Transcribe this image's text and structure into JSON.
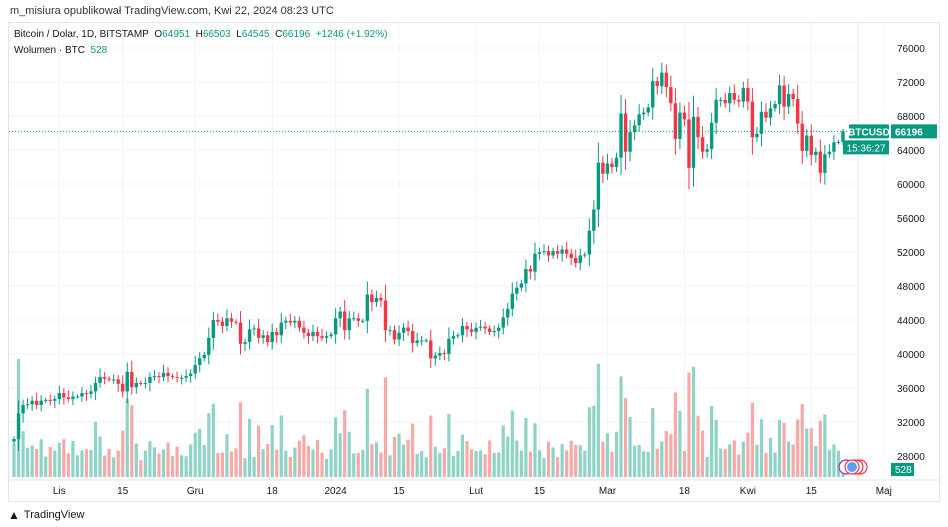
{
  "published": "m_misiura opublikował TradingView.com, Kwi 22, 2024 08:23 UTC",
  "legend": {
    "symbol": "Bitcoin / Dolar, 1D, BITSTAMP",
    "o_label": "O",
    "o": "64951",
    "h_label": "H",
    "h": "66503",
    "l_label": "L",
    "l": "64545",
    "c_label": "C",
    "c": "66196",
    "change": "+1246 (+1.92%)",
    "volume_label": "Wolumen · BTC",
    "volume": "528"
  },
  "price_tag": {
    "symbol": "BTCUSD",
    "price": "66196",
    "countdown": "15:36:27"
  },
  "volume_tag": "528",
  "footer": {
    "brand": "TradingView"
  },
  "colors": {
    "up": "#089981",
    "down": "#f23645",
    "up_vol": "#8fd3c7",
    "down_vol": "#f7a9a7"
  },
  "chart_data": {
    "type": "candlestick",
    "title": "Bitcoin / Dolar, 1D, BITSTAMP",
    "start_date": "2023-10-22",
    "end_date": "2024-04-22",
    "ylim": [
      26000,
      78000
    ],
    "y_ticks": [
      "76000",
      "72000",
      "68000",
      "64000",
      "60000",
      "56000",
      "52000",
      "48000",
      "44000",
      "40000",
      "36000",
      "32000",
      "28000"
    ],
    "y_tick_values": [
      76000,
      72000,
      68000,
      64000,
      60000,
      56000,
      52000,
      48000,
      44000,
      40000,
      36000,
      32000,
      28000
    ],
    "x_ticks": [
      {
        "label": "Lis",
        "day": 10
      },
      {
        "label": "15",
        "day": 24
      },
      {
        "label": "Gru",
        "day": 40
      },
      {
        "label": "18",
        "day": 57
      },
      {
        "label": "2024",
        "day": 71
      },
      {
        "label": "15",
        "day": 85
      },
      {
        "label": "Lut",
        "day": 102
      },
      {
        "label": "15",
        "day": 116
      },
      {
        "label": "Mar",
        "day": 131
      },
      {
        "label": "18",
        "day": 148
      },
      {
        "label": "Kwi",
        "day": 162
      },
      {
        "label": "15",
        "day": 176
      },
      {
        "label": "Maj",
        "day": 192
      }
    ],
    "last_candle": {
      "open": 64951,
      "high": 66503,
      "low": 64545,
      "close": 66196
    },
    "closes": [
      30000,
      33000,
      34000,
      34100,
      34500,
      34000,
      34500,
      34600,
      34500,
      34700,
      35400,
      34900,
      34700,
      35000,
      35000,
      35400,
      35300,
      35600,
      36600,
      37300,
      37100,
      37000,
      37000,
      36500,
      35600,
      37900,
      36100,
      36600,
      36500,
      36600,
      37300,
      37400,
      37300,
      37800,
      37400,
      37300,
      37200,
      37200,
      37400,
      37700,
      38700,
      39500,
      39900,
      41900,
      44000,
      43800,
      43300,
      44200,
      43800,
      43700,
      41200,
      41400,
      42900,
      43000,
      41900,
      42200,
      41400,
      42600,
      42200,
      43700,
      43900,
      43700,
      43900,
      43100,
      42500,
      42100,
      42600,
      42100,
      41900,
      42100,
      42300,
      44200,
      45000,
      42800,
      44200,
      44200,
      43900,
      43900,
      47000,
      46100,
      46600,
      46300,
      42800,
      42800,
      41700,
      42500,
      43100,
      42700,
      41300,
      41600,
      41600,
      41600,
      39500,
      39800,
      40100,
      40000,
      41800,
      42100,
      42200,
      43300,
      42900,
      42600,
      43100,
      43200,
      43000,
      42600,
      42700,
      43100,
      44300,
      45300,
      47100,
      47800,
      48300,
      50000,
      49700,
      51800,
      52000,
      52100,
      51600,
      52100,
      51800,
      52300,
      51800,
      51300,
      50700,
      51600,
      51700,
      54500,
      57000,
      62500,
      61200,
      62400,
      62000,
      63100,
      68300,
      63800,
      66100,
      66900,
      68200,
      68400,
      69000,
      72100,
      71500,
      73100,
      71400,
      69500,
      65300,
      68400,
      67600,
      61900,
      67900,
      65500,
      63800,
      64100,
      67200,
      69900,
      69900,
      69500,
      70700,
      69900,
      69700,
      71300,
      69700,
      65500,
      65900,
      68500,
      67800,
      68900,
      69400,
      71600,
      69100,
      70600,
      70000,
      67100,
      63900,
      65700,
      63400,
      63800,
      61300,
      63500,
      63800,
      64900,
      64950,
      66196
    ]
  }
}
